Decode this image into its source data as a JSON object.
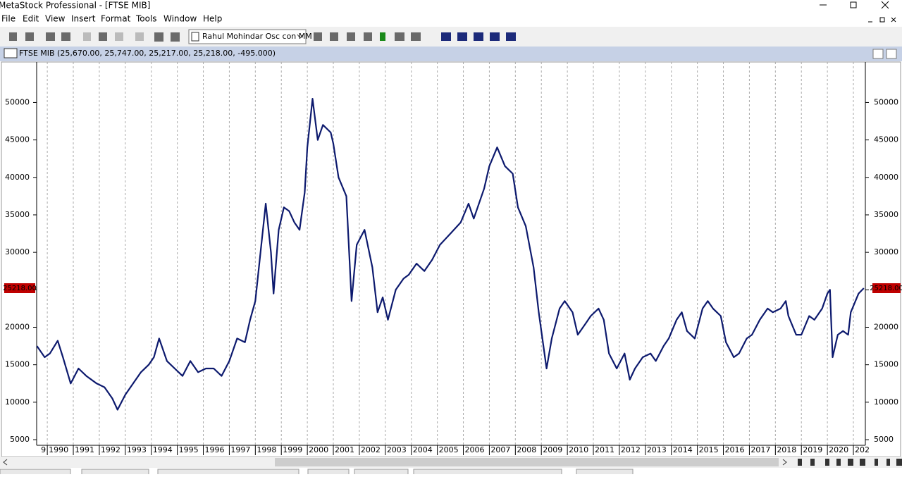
{
  "title_bar": "MetaStock Professional - [FTSE MIB]",
  "menu": [
    "File",
    "Edit",
    "View",
    "Insert",
    "Format",
    "Tools",
    "Window",
    "Help"
  ],
  "toolbar": {
    "indicator": "Rahul Mohindar Osc con MM"
  },
  "chart_window": {
    "title": "FTSE MIB (25,670.00, 25,747.00, 25,217.00, 25,218.00, -495.000)"
  },
  "chart_data": {
    "type": "line",
    "color": "#0d1a6e",
    "x": [
      1989.6,
      1989.9,
      1990.1,
      1990.4,
      1990.6,
      1990.9,
      1991.2,
      1991.5,
      1991.9,
      1992.2,
      1992.5,
      1992.7,
      1993.0,
      1993.3,
      1993.6,
      1993.9,
      1994.1,
      1994.3,
      1994.6,
      1994.9,
      1995.2,
      1995.5,
      1995.8,
      1996.1,
      1996.4,
      1996.7,
      1997.0,
      1997.3,
      1997.6,
      1997.8,
      1998.0,
      1998.2,
      1998.4,
      1998.6,
      1998.7,
      1998.9,
      1999.1,
      1999.3,
      1999.5,
      1999.7,
      1999.9,
      2000.0,
      2000.2,
      2000.4,
      2000.6,
      2000.9,
      2001.0,
      2001.2,
      2001.5,
      2001.7,
      2001.9,
      2002.2,
      2002.5,
      2002.7,
      2002.9,
      2003.1,
      2003.4,
      2003.7,
      2003.9,
      2004.2,
      2004.5,
      2004.8,
      2005.1,
      2005.5,
      2005.9,
      2006.2,
      2006.4,
      2006.8,
      2007.0,
      2007.3,
      2007.6,
      2007.9,
      2008.1,
      2008.4,
      2008.7,
      2008.9,
      2009.2,
      2009.4,
      2009.7,
      2009.9,
      2010.2,
      2010.4,
      2010.7,
      2010.9,
      2011.2,
      2011.4,
      2011.6,
      2011.9,
      2012.2,
      2012.4,
      2012.6,
      2012.9,
      2013.2,
      2013.4,
      2013.7,
      2013.9,
      2014.2,
      2014.4,
      2014.6,
      2014.9,
      2015.2,
      2015.4,
      2015.6,
      2015.9,
      2016.1,
      2016.4,
      2016.6,
      2016.9,
      2017.1,
      2017.4,
      2017.7,
      2017.9,
      2018.2,
      2018.4,
      2018.5,
      2018.8,
      2019.0,
      2019.3,
      2019.5,
      2019.8,
      2020.0,
      2020.1,
      2020.2,
      2020.4,
      2020.6,
      2020.8,
      2020.9,
      2021.2,
      2021.4
    ],
    "values": [
      17500,
      16000,
      16500,
      18200,
      16000,
      12500,
      14500,
      13500,
      12500,
      12000,
      10500,
      9000,
      11000,
      12500,
      14000,
      15000,
      16000,
      18500,
      15500,
      14500,
      13500,
      15500,
      14000,
      14500,
      14500,
      13500,
      15500,
      18500,
      18000,
      21000,
      23500,
      30000,
      36500,
      30000,
      24500,
      33000,
      36000,
      35500,
      34000,
      33000,
      38000,
      44000,
      50500,
      45000,
      47000,
      46000,
      44500,
      40000,
      37500,
      23500,
      31000,
      33000,
      28000,
      22000,
      24000,
      21000,
      25000,
      26500,
      27000,
      28500,
      27500,
      29000,
      31000,
      32500,
      34000,
      36500,
      34500,
      38500,
      41500,
      44000,
      41500,
      40500,
      36000,
      33500,
      28000,
      22000,
      14500,
      18500,
      22500,
      23500,
      22000,
      19000,
      20500,
      21500,
      22500,
      21000,
      16500,
      14500,
      16500,
      13000,
      14500,
      16000,
      16500,
      15500,
      17500,
      18500,
      21000,
      22000,
      19500,
      18500,
      22500,
      23500,
      22500,
      21500,
      18000,
      16000,
      16500,
      18500,
      19000,
      21000,
      22500,
      22000,
      22500,
      23500,
      21500,
      19000,
      19000,
      21500,
      21000,
      22500,
      24500,
      25000,
      16000,
      19000,
      19500,
      19000,
      22000,
      24500,
      25218
    ],
    "xlim": [
      1989.59,
      2021.46
    ],
    "xticks": [
      {
        "value": 1989,
        "label": "9"
      },
      1990,
      1991,
      1992,
      1993,
      1994,
      1995,
      1996,
      1997,
      1998,
      1999,
      2000,
      2001,
      2002,
      2003,
      2004,
      2005,
      2006,
      2007,
      2008,
      2009,
      2010,
      2011,
      2012,
      2013,
      2014,
      2015,
      2016,
      2017,
      2018,
      2019,
      2020,
      {
        "value": 2021,
        "label": "202"
      }
    ],
    "ylim": [
      4250,
      55400
    ],
    "yticks": [
      5000,
      10000,
      15000,
      20000,
      25000,
      30000,
      35000,
      40000,
      45000,
      50000
    ],
    "last_price": {
      "value": 25218,
      "label": "25218.00"
    },
    "grid": true
  }
}
